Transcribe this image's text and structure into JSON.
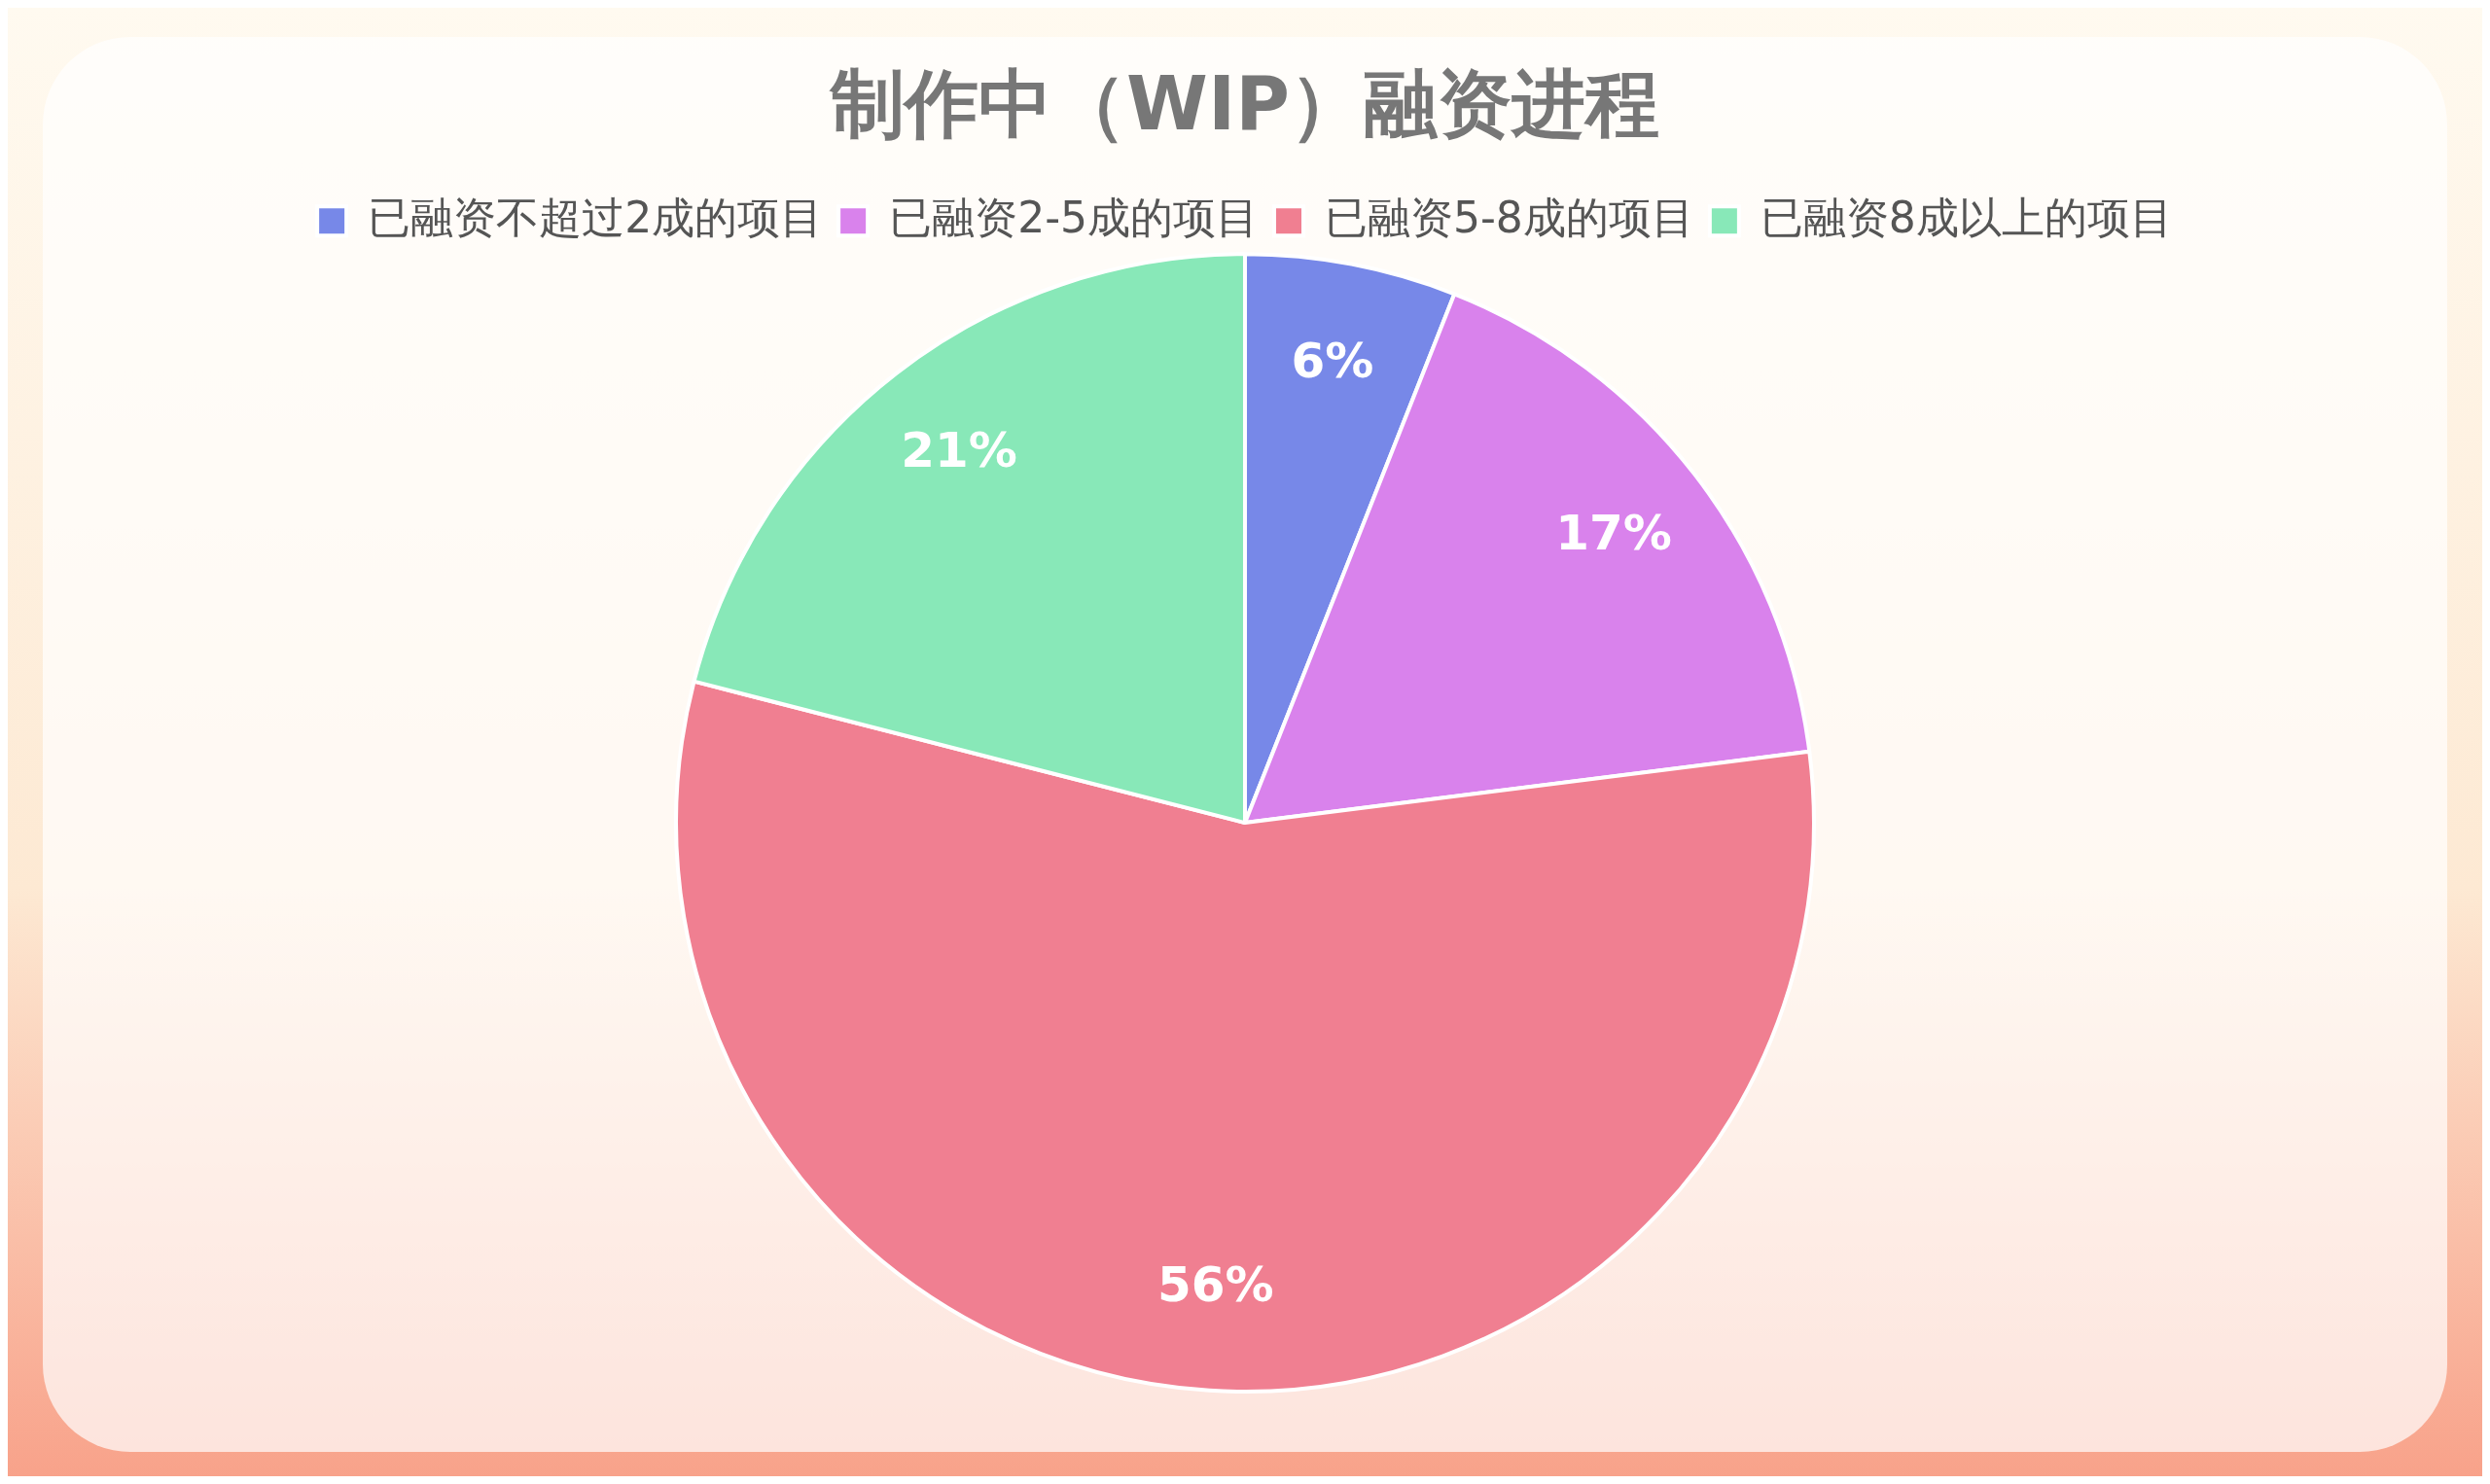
{
  "chart_data": {
    "type": "pie",
    "title": "制作中（WIP）融资进程",
    "categories": [
      "已融资不超过2成的项目",
      "已融资2-5成的项目",
      "已融资5-8成的项目",
      "已融资8成以上的项目"
    ],
    "values": [
      6,
      17,
      56,
      21
    ],
    "colors": [
      "#7788e8",
      "#d982ec",
      "#f07f91",
      "#88e8b8"
    ],
    "value_labels": [
      "6%",
      "17%",
      "56%",
      "21%"
    ],
    "legend": "top"
  }
}
